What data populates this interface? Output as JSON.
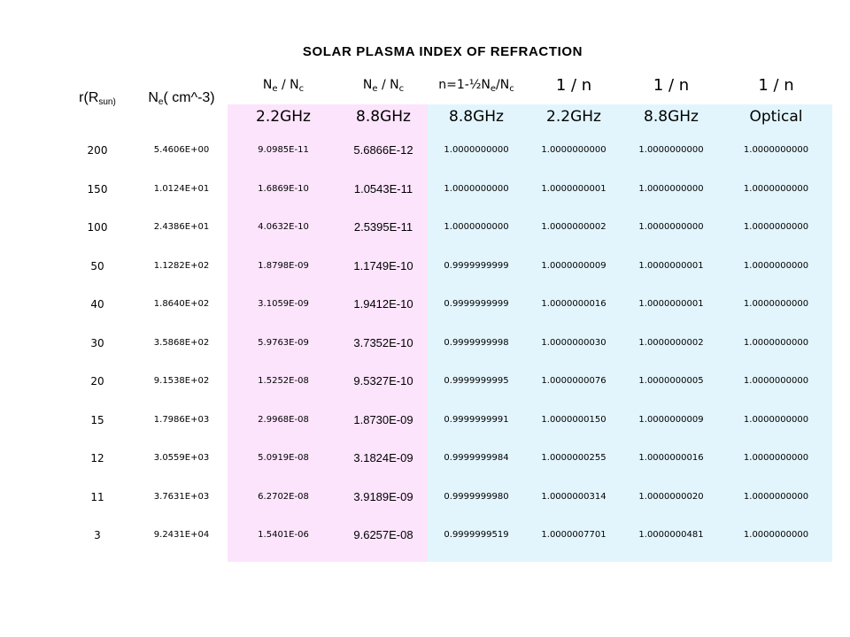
{
  "title": "SOLAR PLASMA INDEX OF REFRACTION",
  "colors": {
    "pink": "#fce4fc",
    "blue": "#e2f5fd"
  },
  "headers": {
    "r": {
      "base": "r(R",
      "sub": "sun)"
    },
    "ne": {
      "base": "N",
      "sub": "e",
      "rest": "( cm^-3)"
    },
    "ratio": {
      "n": "N",
      "e": "e",
      "slash": " / N",
      "c": "c"
    },
    "n_formula": {
      "pre": "n=1-½N",
      "e": "e",
      "mid": "/N",
      "c": "c"
    },
    "inv_n": "1 / n",
    "freqs": [
      "2.2GHz",
      "8.8GHz",
      "8.8GHz",
      "2.2GHz",
      "8.8GHz",
      "Optical"
    ]
  },
  "rows": [
    [
      "200",
      "5.4606E+00",
      "9.0985E-11",
      "5.6866E-12",
      "1.0000000000",
      "1.0000000000",
      "1.0000000000",
      "1.0000000000"
    ],
    [
      "150",
      "1.0124E+01",
      "1.6869E-10",
      "1.0543E-11",
      "1.0000000000",
      "1.0000000001",
      "1.0000000000",
      "1.0000000000"
    ],
    [
      "100",
      "2.4386E+01",
      "4.0632E-10",
      "2.5395E-11",
      "1.0000000000",
      "1.0000000002",
      "1.0000000000",
      "1.0000000000"
    ],
    [
      "50",
      "1.1282E+02",
      "1.8798E-09",
      "1.1749E-10",
      "0.9999999999",
      "1.0000000009",
      "1.0000000001",
      "1.0000000000"
    ],
    [
      "40",
      "1.8640E+02",
      "3.1059E-09",
      "1.9412E-10",
      "0.9999999999",
      "1.0000000016",
      "1.0000000001",
      "1.0000000000"
    ],
    [
      "30",
      "3.5868E+02",
      "5.9763E-09",
      "3.7352E-10",
      "0.9999999998",
      "1.0000000030",
      "1.0000000002",
      "1.0000000000"
    ],
    [
      "20",
      "9.1538E+02",
      "1.5252E-08",
      "9.5327E-10",
      "0.9999999995",
      "1.0000000076",
      "1.0000000005",
      "1.0000000000"
    ],
    [
      "15",
      "1.7986E+03",
      "2.9968E-08",
      "1.8730E-09",
      "0.9999999991",
      "1.0000000150",
      "1.0000000009",
      "1.0000000000"
    ],
    [
      "12",
      "3.0559E+03",
      "5.0919E-08",
      "3.1824E-09",
      "0.9999999984",
      "1.0000000255",
      "1.0000000016",
      "1.0000000000"
    ],
    [
      "11",
      "3.7631E+03",
      "6.2702E-08",
      "3.9189E-09",
      "0.9999999980",
      "1.0000000314",
      "1.0000000020",
      "1.0000000000"
    ],
    [
      "3",
      "9.2431E+04",
      "1.5401E-06",
      "9.6257E-08",
      "0.9999999519",
      "1.0000007701",
      "1.0000000481",
      "1.0000000000"
    ]
  ]
}
